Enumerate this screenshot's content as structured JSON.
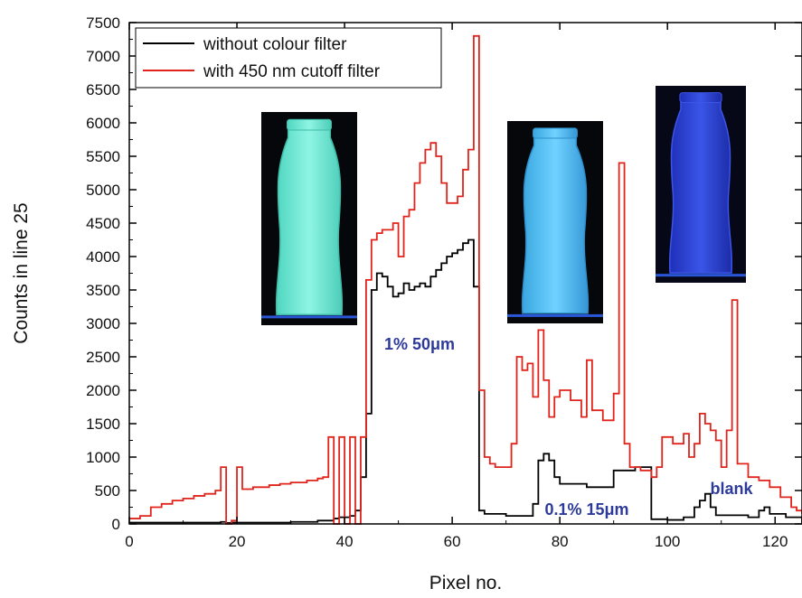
{
  "chart_data": {
    "type": "line",
    "xlabel": "Pixel no.",
    "ylabel": "Counts in line 25",
    "xlim": [
      0,
      125
    ],
    "ylim": [
      0,
      7500
    ],
    "x_ticks": [
      "0",
      "20",
      "40",
      "60",
      "80",
      "100",
      "120"
    ],
    "y_ticks": [
      "0",
      "500",
      "1000",
      "1500",
      "2000",
      "2500",
      "3000",
      "3500",
      "4000",
      "4500",
      "5000",
      "5500",
      "6000",
      "6500",
      "7000",
      "7500"
    ],
    "grid": false,
    "legend_position": "top-left",
    "step_style": true,
    "series": [
      {
        "name": "without colour filter",
        "color": "#000000",
        "points": [
          [
            0,
            20
          ],
          [
            10,
            20
          ],
          [
            17,
            30
          ],
          [
            18,
            15
          ],
          [
            19,
            20
          ],
          [
            30,
            30
          ],
          [
            35,
            50
          ],
          [
            38,
            80
          ],
          [
            39,
            100
          ],
          [
            40,
            100
          ],
          [
            41,
            120
          ],
          [
            42,
            200
          ],
          [
            43,
            700
          ],
          [
            44,
            1650
          ],
          [
            45,
            3500
          ],
          [
            46,
            3750
          ],
          [
            47,
            3700
          ],
          [
            48,
            3550
          ],
          [
            49,
            3400
          ],
          [
            50,
            3450
          ],
          [
            51,
            3600
          ],
          [
            52,
            3500
          ],
          [
            53,
            3550
          ],
          [
            54,
            3600
          ],
          [
            55,
            3550
          ],
          [
            56,
            3700
          ],
          [
            57,
            3800
          ],
          [
            58,
            3900
          ],
          [
            59,
            4000
          ],
          [
            60,
            4050
          ],
          [
            61,
            4100
          ],
          [
            62,
            4200
          ],
          [
            63,
            4250
          ],
          [
            64,
            3550
          ],
          [
            65,
            200
          ],
          [
            66,
            150
          ],
          [
            70,
            120
          ],
          [
            75,
            300
          ],
          [
            76,
            950
          ],
          [
            77,
            1050
          ],
          [
            78,
            950
          ],
          [
            79,
            700
          ],
          [
            80,
            600
          ],
          [
            85,
            550
          ],
          [
            89,
            550
          ],
          [
            90,
            800
          ],
          [
            92,
            800
          ],
          [
            94,
            850
          ],
          [
            96,
            850
          ],
          [
            97,
            70
          ],
          [
            100,
            60
          ],
          [
            103,
            100
          ],
          [
            105,
            250
          ],
          [
            106,
            350
          ],
          [
            107,
            450
          ],
          [
            108,
            250
          ],
          [
            109,
            130
          ],
          [
            115,
            100
          ],
          [
            117,
            200
          ],
          [
            118,
            250
          ],
          [
            119,
            150
          ],
          [
            122,
            100
          ],
          [
            125,
            0
          ]
        ]
      },
      {
        "name": "with 450 nm cutoff filter",
        "color": "#e0241b",
        "points": [
          [
            0,
            80
          ],
          [
            2,
            120
          ],
          [
            4,
            250
          ],
          [
            6,
            300
          ],
          [
            8,
            350
          ],
          [
            10,
            380
          ],
          [
            12,
            420
          ],
          [
            14,
            450
          ],
          [
            16,
            500
          ],
          [
            17,
            850
          ],
          [
            18,
            0
          ],
          [
            19,
            50
          ],
          [
            20,
            850
          ],
          [
            21,
            520
          ],
          [
            23,
            550
          ],
          [
            26,
            580
          ],
          [
            28,
            600
          ],
          [
            30,
            620
          ],
          [
            33,
            650
          ],
          [
            35,
            680
          ],
          [
            36,
            700
          ],
          [
            37,
            1300
          ],
          [
            38,
            0
          ],
          [
            39,
            1300
          ],
          [
            40,
            0
          ],
          [
            41,
            1300
          ],
          [
            42,
            0
          ],
          [
            43,
            1300
          ],
          [
            44,
            3650
          ],
          [
            45,
            4250
          ],
          [
            46,
            4350
          ],
          [
            47,
            4400
          ],
          [
            48,
            4400
          ],
          [
            49,
            4500
          ],
          [
            50,
            4000
          ],
          [
            51,
            4600
          ],
          [
            52,
            4700
          ],
          [
            53,
            5100
          ],
          [
            54,
            5400
          ],
          [
            55,
            5600
          ],
          [
            56,
            5700
          ],
          [
            57,
            5500
          ],
          [
            58,
            5100
          ],
          [
            59,
            4800
          ],
          [
            60,
            4800
          ],
          [
            61,
            4900
          ],
          [
            62,
            5300
          ],
          [
            63,
            5600
          ],
          [
            64,
            7300
          ],
          [
            65,
            2000
          ],
          [
            66,
            1000
          ],
          [
            67,
            900
          ],
          [
            68,
            850
          ],
          [
            71,
            1200
          ],
          [
            72,
            2500
          ],
          [
            73,
            2300
          ],
          [
            74,
            2400
          ],
          [
            75,
            1900
          ],
          [
            76,
            2900
          ],
          [
            77,
            2150
          ],
          [
            78,
            1600
          ],
          [
            79,
            1900
          ],
          [
            80,
            2000
          ],
          [
            82,
            1850
          ],
          [
            84,
            1600
          ],
          [
            85,
            2450
          ],
          [
            86,
            1700
          ],
          [
            88,
            1550
          ],
          [
            89,
            1550
          ],
          [
            90,
            1950
          ],
          [
            91,
            5400
          ],
          [
            92,
            1200
          ],
          [
            93,
            850
          ],
          [
            95,
            800
          ],
          [
            97,
            700
          ],
          [
            98,
            850
          ],
          [
            99,
            1300
          ],
          [
            101,
            1200
          ],
          [
            103,
            1350
          ],
          [
            104,
            1000
          ],
          [
            105,
            1200
          ],
          [
            106,
            1650
          ],
          [
            107,
            1500
          ],
          [
            108,
            1400
          ],
          [
            109,
            1250
          ],
          [
            110,
            850
          ],
          [
            111,
            1400
          ],
          [
            112,
            3350
          ],
          [
            113,
            900
          ],
          [
            115,
            700
          ],
          [
            117,
            650
          ],
          [
            119,
            550
          ],
          [
            121,
            400
          ],
          [
            123,
            250
          ],
          [
            124,
            200
          ],
          [
            125,
            150
          ]
        ]
      }
    ],
    "annotations": [
      "1% 50μm",
      "0.1% 15μm",
      "blank"
    ]
  }
}
